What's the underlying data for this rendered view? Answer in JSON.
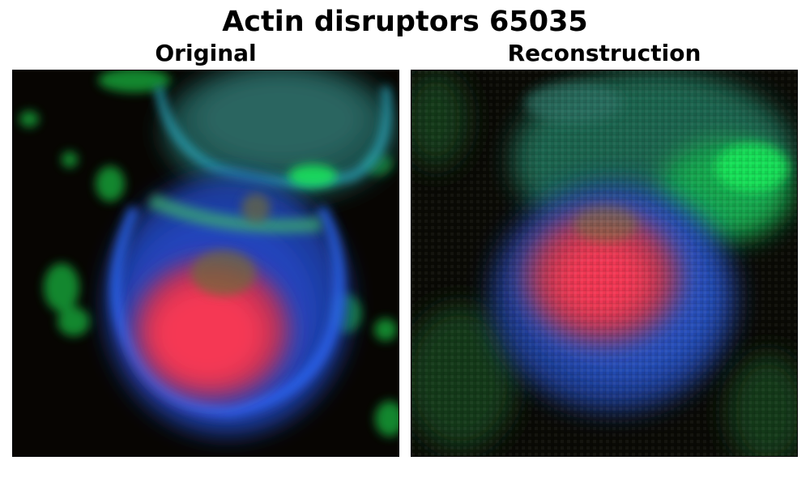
{
  "figure": {
    "title": "Actin disruptors 65035"
  },
  "panels": [
    {
      "title": "Original"
    },
    {
      "title": "Reconstruction"
    }
  ],
  "colors": {
    "background": "#070502",
    "nucleus": "#ff3a55",
    "membrane_blue": "#2f6cff",
    "cytoplasm_green": "#14e85a",
    "cyan_edge": "#27b8c4"
  }
}
